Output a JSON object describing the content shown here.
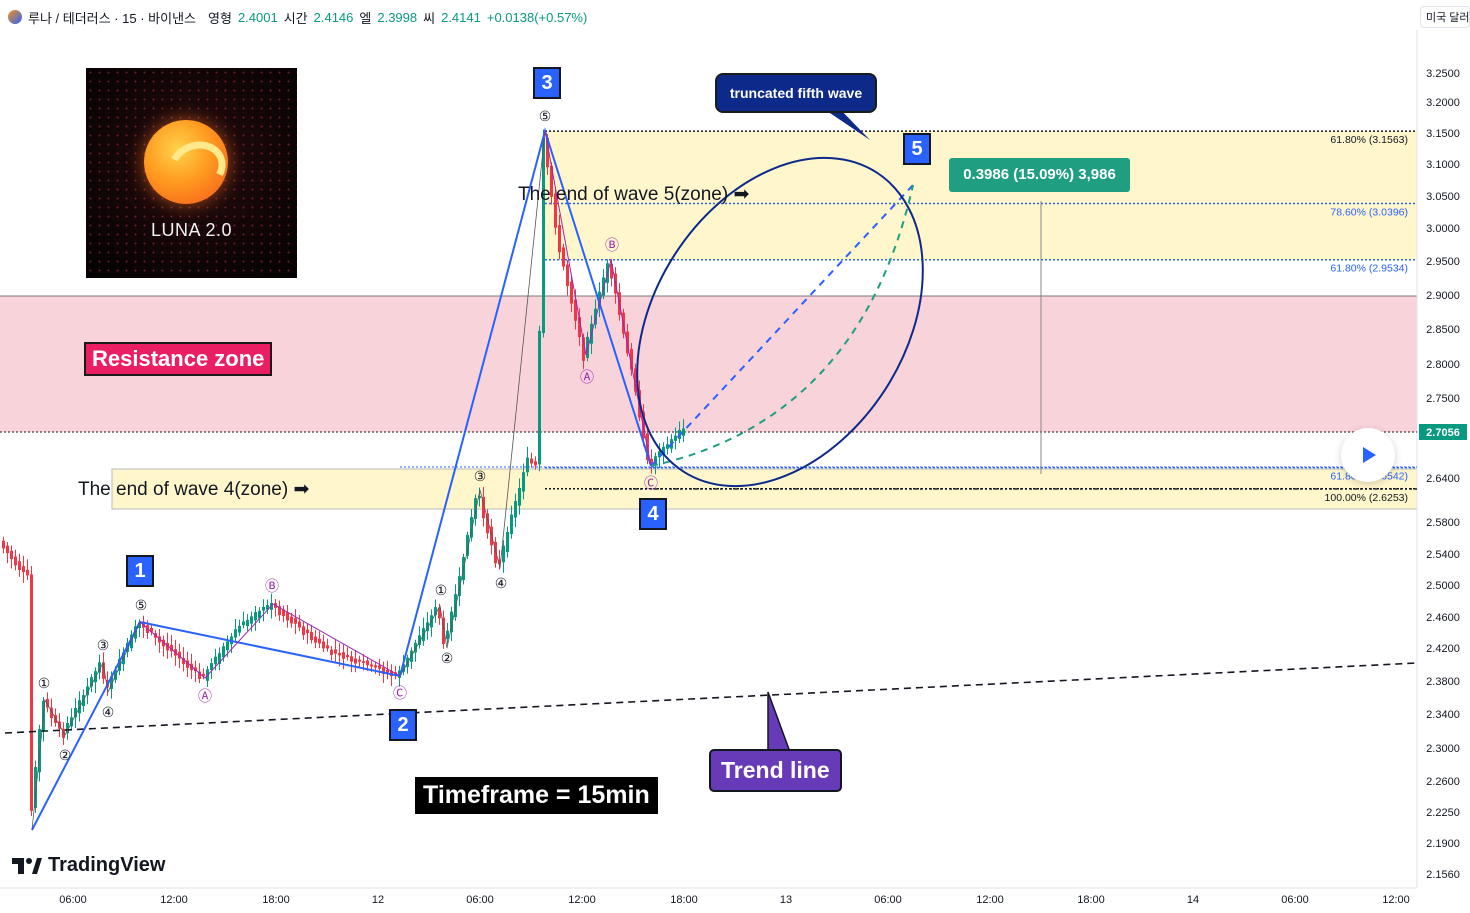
{
  "header": {
    "symbol": "루나 / 테더러스 · 15 · 바이낸스",
    "open_label": "영형",
    "open": "2.4001",
    "high_label": "시간",
    "high": "2.4146",
    "low_label": "엘",
    "low": "2.3998",
    "close_label": "씨",
    "close": "2.4141",
    "change": "+0.0138(+0.57%)"
  },
  "currency_button": "미국 달러",
  "logo_caption": "LUNA 2.0",
  "labels": {
    "resistance": "Resistance zone",
    "wave4_zone": "The end of wave 4(zone) ➡",
    "wave5_zone": "The end of wave 5(zone) ➡",
    "timeframe": "Timeframe = 15min",
    "trend_line": "Trend line",
    "truncated": "truncated fifth wave",
    "measure": "0.3986 (15.09%) 3,986"
  },
  "wave_numbers": [
    "1",
    "2",
    "3",
    "4",
    "5"
  ],
  "brand": "TradingView",
  "colors": {
    "resistance": "#f7cfd7",
    "zone": "#fff6cc",
    "wave_line": "#2962ff",
    "abc": "#9c27b0",
    "up": "#089981",
    "down": "#f23645",
    "price_tag": "#089981"
  },
  "icons": [
    "luna-logo-icon",
    "tradingview-logo-icon",
    "play-icon",
    "arrow-right-icon"
  ],
  "chart_data": {
    "type": "candlestick",
    "current_price": "2.7056",
    "y_ticks": [
      "3.2500",
      "3.2000",
      "3.1500",
      "3.1000",
      "3.0500",
      "3.0000",
      "2.9500",
      "2.9000",
      "2.8500",
      "2.8000",
      "2.7500",
      "2.6400",
      "2.5800",
      "2.5400",
      "2.5000",
      "2.4600",
      "2.4200",
      "2.3800",
      "2.3400",
      "2.3000",
      "2.2600",
      "2.2250",
      "2.1900",
      "2.1560"
    ],
    "x_ticks": [
      "06:00",
      "12:00",
      "18:00",
      "12",
      "06:00",
      "12:00",
      "18:00",
      "13",
      "06:00",
      "12:00",
      "18:00",
      "14",
      "06:00",
      "12:00"
    ],
    "fib_levels": [
      {
        "label": "61.80% (3.1563)",
        "value": 3.1563,
        "color": "#131722"
      },
      {
        "label": "78.60% (3.0396)",
        "value": 3.0396,
        "color": "#2962ff"
      },
      {
        "label": "61.80% (2.9534)",
        "value": 2.9534,
        "color": "#2962ff"
      },
      {
        "label": "61.80% (2.6542)",
        "value": 2.6542,
        "color": "#2962ff"
      },
      {
        "label": "100.00% (2.6253)",
        "value": 2.6253,
        "color": "#131722"
      }
    ],
    "zones": [
      {
        "name": "resistance",
        "from": 2.7056,
        "to": 2.9
      }
    ],
    "minor_waves": [
      "①",
      "②",
      "③",
      "④",
      "⑤",
      "Ⓐ",
      "Ⓑ",
      "Ⓒ"
    ]
  }
}
